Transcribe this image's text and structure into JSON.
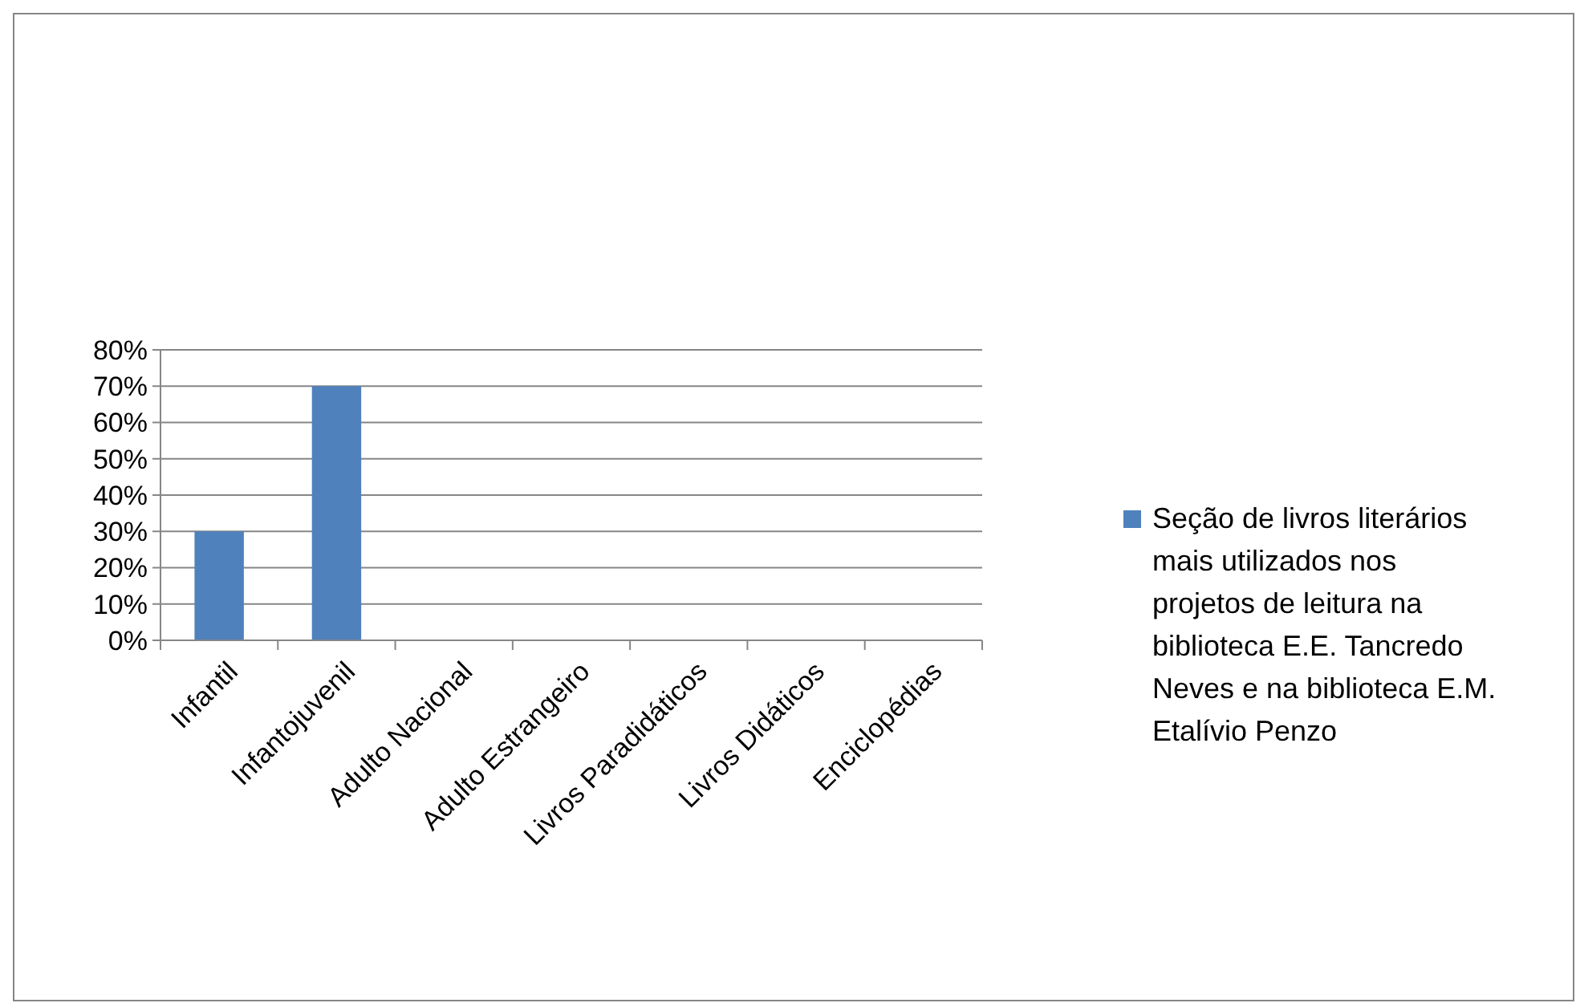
{
  "chart_data": {
    "type": "bar",
    "categories": [
      "Infantil",
      "Infantojuvenil",
      "Adulto Nacional",
      "Adulto Estrangeiro",
      "Livros Paradidáticos",
      "Livros Didáticos",
      "Enciclopédias"
    ],
    "series": [
      {
        "name": "Seção de livros literários mais utilizados nos projetos de leitura na biblioteca E.E. Tancredo Neves e na biblioteca E.M. Etalívio Penzo",
        "color": "#4f81bd",
        "values": [
          30,
          70,
          0,
          0,
          0,
          0,
          0
        ]
      }
    ],
    "ylim": [
      0,
      80
    ],
    "yticks": [
      {
        "value": 0,
        "label": "0%"
      },
      {
        "value": 10,
        "label": "10%"
      },
      {
        "value": 20,
        "label": "20%"
      },
      {
        "value": 30,
        "label": "30%"
      },
      {
        "value": 40,
        "label": "40%"
      },
      {
        "value": 50,
        "label": "50%"
      },
      {
        "value": 60,
        "label": "60%"
      },
      {
        "value": 70,
        "label": "70%"
      },
      {
        "value": 80,
        "label": "80%"
      }
    ],
    "grid": "y",
    "legend": "right"
  }
}
